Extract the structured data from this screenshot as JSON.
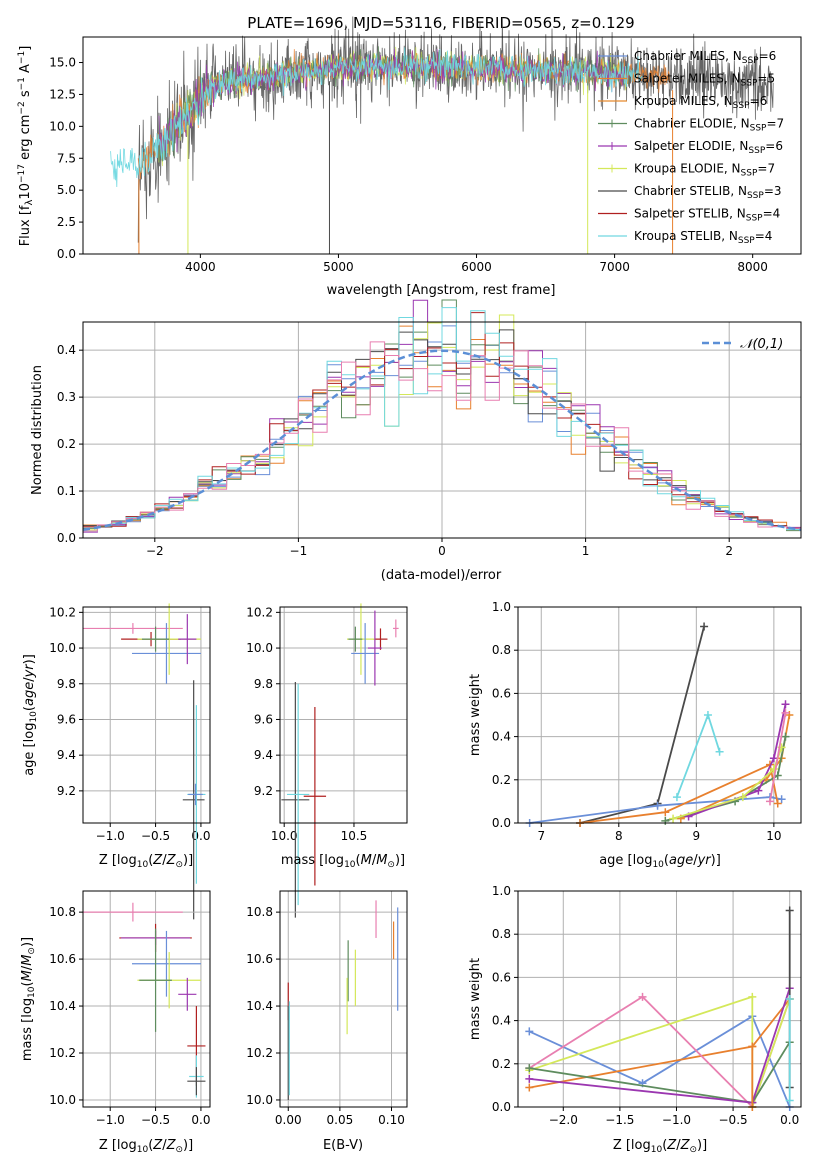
{
  "palette": {
    "Chabrier MILES": "#6a8fd8",
    "Salpeter MILES": "#e8802e",
    "Kroupa MILES": "#e88a2e",
    "Chabrier ELODIE": "#5e8c5e",
    "Salpeter ELODIE": "#9b37b0",
    "Kroupa ELODIE": "#d4e85a",
    "Chabrier STELIB": "#4a4a4a",
    "Salpeter STELIB": "#b02020",
    "Kroupa STELIB": "#70d8e0",
    "pink": "#e87fb0",
    "grid": "#b0b0b0",
    "gauss": "#5b8fd6"
  },
  "chart_data": [
    {
      "id": "spectrum",
      "type": "line",
      "title": "PLATE=1696, MJD=53116, FIBERID=0565, z=0.129",
      "xlabel": "wavelength [Angstrom, rest frame]",
      "ylabel": "Flux [f_λ 10^-17 erg cm^-2 s^-1 A^-1]",
      "xlim": [
        3150,
        8350
      ],
      "ylim": [
        0,
        17
      ],
      "xticks": [
        "4000",
        "5000",
        "6000",
        "7000",
        "8000"
      ],
      "yticks": [
        "0.0",
        "2.5",
        "5.0",
        "7.5",
        "10.0",
        "12.5",
        "15.0"
      ],
      "grid": false,
      "legend_position": "top-right",
      "legend": [
        "Chabrier MILES, N_SSP=6",
        "Salpeter MILES, N_SSP=5",
        "Kroupa MILES, N_SSP=6",
        "Chabrier ELODIE, N_SSP=7",
        "Salpeter ELODIE, N_SSP=6",
        "Kroupa ELODIE, N_SSP=7",
        "Chabrier STELIB, N_SSP=3",
        "Salpeter STELIB, N_SSP=4",
        "Kroupa STELIB, N_SSP=4"
      ],
      "continuum": {
        "x": [
          3350,
          3450,
          3550,
          3650,
          3750,
          3850,
          3950,
          4050,
          4150,
          4300,
          4500,
          4700,
          5000,
          5300,
          5600,
          6000,
          6400,
          6800,
          7200,
          7600,
          8000,
          8150
        ],
        "y": [
          7.0,
          7.4,
          6.8,
          7.9,
          9.0,
          10.5,
          11.5,
          12.8,
          13.4,
          13.6,
          14.0,
          14.3,
          14.6,
          14.7,
          14.7,
          14.6,
          14.4,
          14.2,
          14.0,
          13.7,
          13.4,
          13.3
        ]
      }
    },
    {
      "id": "residuals",
      "type": "histogram",
      "xlabel": "(data-model)/error",
      "ylabel": "Normed distribution",
      "xlim": [
        -2.5,
        2.5
      ],
      "ylim": [
        0,
        0.46
      ],
      "xticks": [
        "−2",
        "−1",
        "0",
        "1",
        "2"
      ],
      "yticks": [
        "0.0",
        "0.1",
        "0.2",
        "0.3",
        "0.4"
      ],
      "grid": true,
      "legend_position": "top-right",
      "legend": [
        "𝒩(0,1)"
      ],
      "bin_width": 0.1
    },
    {
      "id": "age_vs_Z",
      "type": "scatter",
      "xlabel": "Z [log10(Z/Z⊙)]",
      "ylabel": "age [log10(age/yr)]",
      "xlim": [
        -1.3,
        0.1
      ],
      "ylim": [
        9.02,
        10.23
      ],
      "xticks": [
        "−1.0",
        "−0.5",
        "0.0"
      ],
      "yticks": [
        "9.2",
        "9.4",
        "9.6",
        "9.8",
        "10.0",
        "10.2"
      ],
      "grid": true,
      "points": [
        {
          "color": "pink",
          "x": -0.75,
          "y": 10.11,
          "xerr": 0.55,
          "yerr": 0.03
        },
        {
          "color": "Salpeter STELIB",
          "x": -0.55,
          "y": 10.05,
          "xerr": 0.33,
          "yerr": 0.04
        },
        {
          "color": "Chabrier MILES",
          "x": -0.38,
          "y": 9.97,
          "xerr": 0.38,
          "yerr": 0.17
        },
        {
          "color": "Kroupa ELODIE",
          "x": -0.35,
          "y": 10.05,
          "xerr": 0.35,
          "yerr": 0.2
        },
        {
          "color": "Chabrier ELODIE",
          "x": -0.5,
          "y": 10.05,
          "xerr": 0.15,
          "yerr": 0.07
        },
        {
          "color": "Salpeter ELODIE",
          "x": -0.15,
          "y": 10.05,
          "xerr": 0.1,
          "yerr": 0.14
        },
        {
          "color": "Chabrier STELIB",
          "x": -0.08,
          "y": 9.15,
          "xerr": 0.12,
          "yerr": 0.67
        },
        {
          "color": "Kroupa STELIB",
          "x": -0.05,
          "y": 9.18,
          "xerr": 0.1,
          "yerr": 0.5
        },
        {
          "color": "Chabrier MILES",
          "x": -0.06,
          "y": 9.18,
          "xerr": 0.08,
          "yerr": 0.06
        }
      ]
    },
    {
      "id": "age_vs_mass",
      "type": "scatter",
      "xlabel": "mass [log10(M/M⊙)]",
      "ylabel": "",
      "xlim": [
        9.97,
        10.88
      ],
      "ylim": [
        9.02,
        10.23
      ],
      "xticks": [
        "10.0",
        "10.5"
      ],
      "yticks": [
        "9.2",
        "9.4",
        "9.6",
        "9.8",
        "10.0",
        "10.2"
      ],
      "grid": true,
      "points": [
        {
          "color": "pink",
          "x": 10.8,
          "y": 10.11,
          "xerr": 0.02,
          "yerr": 0.05
        },
        {
          "color": "Salpeter STELIB",
          "x": 10.69,
          "y": 10.05,
          "xerr": 0.05,
          "yerr": 0.06
        },
        {
          "color": "Kroupa ELODIE",
          "x": 10.55,
          "y": 10.05,
          "xerr": 0.1,
          "yerr": 0.2
        },
        {
          "color": "Chabrier ELODIE",
          "x": 10.51,
          "y": 10.05,
          "xerr": 0.05,
          "yerr": 0.07
        },
        {
          "color": "Chabrier MILES",
          "x": 10.58,
          "y": 9.97,
          "xerr": 0.1,
          "yerr": 0.17
        },
        {
          "color": "Salpeter ELODIE",
          "x": 10.65,
          "y": 10.0,
          "xerr": 0.05,
          "yerr": 0.21
        },
        {
          "color": "Chabrier STELIB",
          "x": 10.08,
          "y": 9.15,
          "xerr": 0.1,
          "yerr": 0.66
        },
        {
          "color": "Salpeter STELIB",
          "x": 10.22,
          "y": 9.17,
          "xerr": 0.08,
          "yerr": 0.5
        },
        {
          "color": "Kroupa STELIB",
          "x": 10.1,
          "y": 9.18,
          "xerr": 0.08,
          "yerr": 0.62
        }
      ]
    },
    {
      "id": "weight_vs_age",
      "type": "line",
      "xlabel": "age [log10(age/yr)]",
      "ylabel": "mass weight",
      "xlim": [
        6.7,
        10.35
      ],
      "ylim": [
        0,
        1
      ],
      "xticks": [
        "7",
        "8",
        "9",
        "10"
      ],
      "yticks": [
        "0.0",
        "0.2",
        "0.4",
        "0.6",
        "0.8",
        "1.0"
      ],
      "grid": true,
      "series": [
        {
          "color": "Chabrier STELIB",
          "x": [
            7.5,
            8.5,
            9.1
          ],
          "y": [
            0.0,
            0.09,
            0.91
          ]
        },
        {
          "color": "Kroupa STELIB",
          "x": [
            8.75,
            9.15,
            9.3
          ],
          "y": [
            0.12,
            0.5,
            0.33
          ]
        },
        {
          "color": "Chabrier MILES",
          "x": [
            6.85,
            8.5,
            9.95,
            10.1
          ],
          "y": [
            0.0,
            0.08,
            0.12,
            0.11
          ]
        },
        {
          "color": "Salpeter MILES",
          "x": [
            7.5,
            8.6,
            9.95,
            10.05
          ],
          "y": [
            0.0,
            0.05,
            0.27,
            0.09
          ]
        },
        {
          "color": "Kroupa MILES",
          "x": [
            8.8,
            9.9,
            10.1,
            10.2
          ],
          "y": [
            0.02,
            0.2,
            0.3,
            0.5
          ]
        },
        {
          "color": "Chabrier ELODIE",
          "x": [
            8.6,
            9.5,
            10.05,
            10.15
          ],
          "y": [
            0.01,
            0.1,
            0.22,
            0.4
          ]
        },
        {
          "color": "Salpeter ELODIE",
          "x": [
            8.9,
            9.8,
            10.0,
            10.15
          ],
          "y": [
            0.03,
            0.15,
            0.3,
            0.55
          ]
        },
        {
          "color": "Kroupa ELODIE",
          "x": [
            8.7,
            9.6,
            10.0,
            10.1
          ],
          "y": [
            0.02,
            0.12,
            0.25,
            0.35
          ]
        },
        {
          "color": "pink",
          "x": [
            9.95,
            10.15
          ],
          "y": [
            0.1,
            0.51
          ]
        }
      ]
    },
    {
      "id": "mass_vs_Z",
      "type": "scatter",
      "xlabel": "Z [log10(Z/Z⊙)]",
      "ylabel": "mass [log10(M/M⊙)]",
      "xlim": [
        -1.3,
        0.1
      ],
      "ylim": [
        9.97,
        10.89
      ],
      "xticks": [
        "−1.0",
        "−0.5",
        "0.0"
      ],
      "yticks": [
        "10.0",
        "10.2",
        "10.4",
        "10.6",
        "10.8"
      ],
      "grid": true,
      "points": [
        {
          "color": "pink",
          "x": -0.75,
          "y": 10.8,
          "xerr": 0.55,
          "yerr": 0.04
        },
        {
          "color": "Salpeter STELIB",
          "x": -0.5,
          "y": 10.69,
          "xerr": 0.4,
          "yerr": 0.06
        },
        {
          "color": "Salpeter ELODIE",
          "x": -0.5,
          "y": 10.69,
          "xerr": 0.38,
          "yerr": 0.03
        },
        {
          "color": "Chabrier MILES",
          "x": -0.38,
          "y": 10.58,
          "xerr": 0.38,
          "yerr": 0.14
        },
        {
          "color": "Kroupa ELODIE",
          "x": -0.35,
          "y": 10.51,
          "xerr": 0.35,
          "yerr": 0.12
        },
        {
          "color": "Chabrier ELODIE",
          "x": -0.5,
          "y": 10.51,
          "xerr": 0.18,
          "yerr": 0.22
        },
        {
          "color": "Salpeter ELODIE",
          "x": -0.15,
          "y": 10.45,
          "xerr": 0.1,
          "yerr": 0.07
        },
        {
          "color": "Salpeter STELIB",
          "x": -0.05,
          "y": 10.23,
          "xerr": 0.1,
          "yerr": 0.17
        },
        {
          "color": "Kroupa STELIB",
          "x": -0.05,
          "y": 10.1,
          "xerr": 0.08,
          "yerr": 0.09
        },
        {
          "color": "Chabrier STELIB",
          "x": -0.05,
          "y": 10.08,
          "xerr": 0.1,
          "yerr": 0.06
        }
      ]
    },
    {
      "id": "mass_vs_ebv",
      "type": "scatter",
      "xlabel": "E(B-V)",
      "ylabel": "",
      "xlim": [
        -0.008,
        0.115
      ],
      "ylim": [
        9.97,
        10.89
      ],
      "xticks": [
        "0.00",
        "0.05",
        "0.10"
      ],
      "yticks": [
        "10.0",
        "10.2",
        "10.4",
        "10.6",
        "10.8"
      ],
      "grid": true,
      "points": [
        {
          "color": "pink",
          "x": 0.085,
          "y": 10.77,
          "xerr": 0,
          "yerr": 0.08
        },
        {
          "color": "Salpeter MILES",
          "x": 0.102,
          "y": 10.68,
          "xerr": 0,
          "yerr": 0.08
        },
        {
          "color": "Chabrier MILES",
          "x": 0.106,
          "y": 10.6,
          "xerr": 0,
          "yerr": 0.22
        },
        {
          "color": "Kroupa ELODIE",
          "x": 0.065,
          "y": 10.52,
          "xerr": 0,
          "yerr": 0.12
        },
        {
          "color": "Chabrier ELODIE",
          "x": 0.058,
          "y": 10.55,
          "xerr": 0,
          "yerr": 0.13
        },
        {
          "color": "Kroupa ELODIE",
          "x": 0.057,
          "y": 10.4,
          "xerr": 0,
          "yerr": 0.12
        },
        {
          "color": "Salpeter STELIB",
          "x": 0.0,
          "y": 10.42,
          "xerr": 0,
          "yerr": 0.08
        },
        {
          "color": "Chabrier STELIB",
          "x": 0.0,
          "y": 10.2,
          "xerr": 0,
          "yerr": 0.2
        },
        {
          "color": "Kroupa STELIB",
          "x": 0.001,
          "y": 10.22,
          "xerr": 0,
          "yerr": 0.2
        }
      ]
    },
    {
      "id": "weight_vs_Z",
      "type": "line",
      "xlabel": "Z [log10(Z/Z⊙)]",
      "ylabel": "mass weight",
      "xlim": [
        -2.4,
        0.1
      ],
      "ylim": [
        0,
        1
      ],
      "xticks": [
        "−2.0",
        "−1.5",
        "−1.0",
        "−0.5",
        "0.0"
      ],
      "yticks": [
        "0.0",
        "0.2",
        "0.4",
        "0.6",
        "0.8",
        "1.0"
      ],
      "grid": true,
      "series": [
        {
          "color": "Chabrier MILES",
          "x": [
            -2.3,
            -1.3,
            -0.33,
            0.0
          ],
          "y": [
            0.35,
            0.11,
            0.42,
            0.0
          ]
        },
        {
          "color": "Salpeter MILES",
          "x": [
            -2.3,
            -0.33,
            0.0
          ],
          "y": [
            0.09,
            0.28,
            0.5
          ]
        },
        {
          "color": "pink",
          "x": [
            -2.3,
            -1.3,
            -0.33,
            0.0
          ],
          "y": [
            0.18,
            0.51,
            0.0,
            0.5
          ]
        },
        {
          "color": "Kroupa ELODIE",
          "x": [
            -2.3,
            -0.33,
            -0.33,
            0.0
          ],
          "y": [
            0.17,
            0.51,
            0.0,
            0.5
          ]
        },
        {
          "color": "Chabrier ELODIE",
          "x": [
            -2.3,
            -0.33,
            0.0
          ],
          "y": [
            0.18,
            0.02,
            0.3
          ]
        },
        {
          "color": "Salpeter ELODIE",
          "x": [
            -2.3,
            -0.33,
            0.0
          ],
          "y": [
            0.13,
            0.02,
            0.55
          ]
        },
        {
          "color": "Chabrier STELIB",
          "x": [
            0.0,
            0.0
          ],
          "y": [
            0.09,
            0.91
          ]
        },
        {
          "color": "Kroupa STELIB",
          "x": [
            0.0,
            0.0
          ],
          "y": [
            0.03,
            0.5
          ]
        },
        {
          "color": "Salpeter MILES",
          "x": [
            -0.33,
            -0.33
          ],
          "y": [
            0.0,
            0.28
          ]
        }
      ]
    }
  ]
}
